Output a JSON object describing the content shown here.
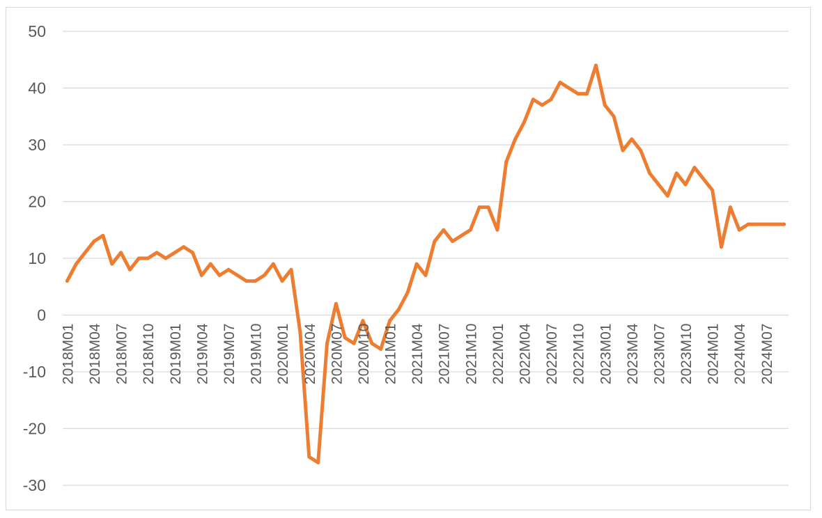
{
  "chart_data": {
    "type": "line",
    "title": "",
    "xlabel": "",
    "ylabel": "",
    "ylim": [
      -30,
      50
    ],
    "yticks": [
      -30,
      -20,
      -10,
      0,
      10,
      20,
      30,
      40,
      50
    ],
    "grid": true,
    "legend": "none",
    "line_color": "#ED7D31",
    "grid_color": "#d9d9d9",
    "x": [
      "2018M01",
      "2018M02",
      "2018M03",
      "2018M04",
      "2018M05",
      "2018M06",
      "2018M07",
      "2018M08",
      "2018M09",
      "2018M10",
      "2018M11",
      "2018M12",
      "2019M01",
      "2019M02",
      "2019M03",
      "2019M04",
      "2019M05",
      "2019M06",
      "2019M07",
      "2019M08",
      "2019M09",
      "2019M10",
      "2019M11",
      "2019M12",
      "2020M01",
      "2020M02",
      "2020M03",
      "2020M04",
      "2020M05",
      "2020M06",
      "2020M07",
      "2020M08",
      "2020M09",
      "2020M10",
      "2020M11",
      "2020M12",
      "2021M01",
      "2021M02",
      "2021M03",
      "2021M04",
      "2021M05",
      "2021M06",
      "2021M07",
      "2021M08",
      "2021M09",
      "2021M10",
      "2021M11",
      "2021M12",
      "2022M01",
      "2022M02",
      "2022M03",
      "2022M04",
      "2022M05",
      "2022M06",
      "2022M07",
      "2022M08",
      "2022M09",
      "2022M10",
      "2022M11",
      "2022M12",
      "2023M01",
      "2023M02",
      "2023M03",
      "2023M04",
      "2023M05",
      "2023M06",
      "2023M07",
      "2023M08",
      "2023M09",
      "2023M10",
      "2023M11",
      "2023M12",
      "2024M01",
      "2024M02",
      "2024M03",
      "2024M04",
      "2024M05",
      "2024M06",
      "2024M07",
      "2024M08",
      "2024M09"
    ],
    "x_tick_labels": [
      "2018M01",
      "2018M04",
      "2018M07",
      "2018M10",
      "2019M01",
      "2019M04",
      "2019M07",
      "2019M10",
      "2020M01",
      "2020M04",
      "2020M07",
      "2020M10",
      "2021M01",
      "2021M04",
      "2021M07",
      "2021M10",
      "2022M01",
      "2022M04",
      "2022M07",
      "2022M10",
      "2023M01",
      "2023M04",
      "2023M07",
      "2023M10",
      "2024M01",
      "2024M04",
      "2024M07"
    ],
    "series": [
      {
        "values": [
          6,
          9,
          11,
          13,
          14,
          9,
          11,
          8,
          10,
          10,
          11,
          10,
          11,
          12,
          11,
          7,
          9,
          7,
          8,
          7,
          6,
          6,
          7,
          9,
          6,
          8,
          -3,
          -25,
          -26,
          -5,
          2,
          -4,
          -5,
          -1,
          -5,
          -6,
          -1,
          1,
          4,
          9,
          7,
          13,
          15,
          13,
          14,
          15,
          19,
          19,
          15,
          27,
          31,
          34,
          38,
          37,
          38,
          41,
          40,
          39,
          39,
          44,
          37,
          35,
          29,
          31,
          29,
          25,
          23,
          21,
          25,
          23,
          26,
          24,
          22,
          12,
          19,
          15,
          16,
          16,
          16,
          16,
          16
        ]
      }
    ]
  }
}
